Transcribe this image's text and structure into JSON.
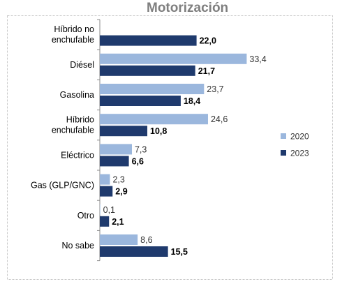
{
  "chart_data": {
    "type": "bar",
    "orientation": "horizontal",
    "title": "Motorización",
    "categories": [
      [
        "Híbrido no",
        "enchufable"
      ],
      [
        "Diésel"
      ],
      [
        "Gasolina"
      ],
      [
        "Híbrido",
        "enchufable"
      ],
      [
        "Eléctrico"
      ],
      [
        "Gas (GLP/GNC)"
      ],
      [
        "Otro"
      ],
      [
        "No sabe"
      ]
    ],
    "series": [
      {
        "name": "2020",
        "values": [
          null,
          33.4,
          23.7,
          24.6,
          7.3,
          2.3,
          0.1,
          8.6
        ],
        "labels": [
          "",
          "33,4",
          "23,7",
          "24,6",
          "7,3",
          "2,3",
          "0,1",
          "8,6"
        ]
      },
      {
        "name": "2023",
        "values": [
          22.0,
          21.7,
          18.4,
          10.8,
          6.6,
          2.9,
          2.1,
          15.5
        ],
        "labels": [
          "22,0",
          "21,7",
          "18,4",
          "10,8",
          "6,6",
          "2,9",
          "2,1",
          "15,5"
        ]
      }
    ],
    "xlim": [
      0,
      40
    ],
    "grid": false,
    "legend_position": "right",
    "colors": {
      "2020": "#9bb7dd",
      "2023": "#1f3a6d"
    }
  }
}
